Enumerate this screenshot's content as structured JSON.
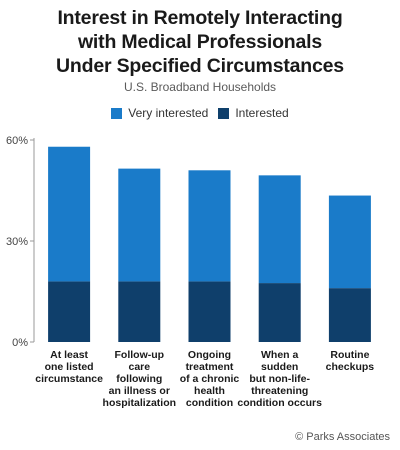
{
  "title_lines": [
    "Interest in Remotely Interacting",
    "with Medical Professionals",
    "Under Specified Circumstances"
  ],
  "subtitle": "U.S. Broadband Households",
  "credit": "© Parks Associates",
  "colors": {
    "very_interested": "#1a7bc9",
    "interested": "#0f3f6b",
    "axis": "#999999",
    "text": "#1a1a1a"
  },
  "chart_data": {
    "type": "bar",
    "stacked": true,
    "title": "Interest in Remotely Interacting with Medical Professionals Under Specified Circumstances",
    "subtitle": "U.S. Broadband Households",
    "legend_position": "top-center",
    "grid": false,
    "ylim": [
      0,
      60
    ],
    "yticks": [
      {
        "value": 0,
        "label": "0%"
      },
      {
        "value": 30,
        "label": "30%"
      },
      {
        "value": 60,
        "label": "60%"
      }
    ],
    "categories": [
      [
        "At least",
        "one listed",
        "circumstance"
      ],
      [
        "Follow-up",
        "care",
        "following",
        "an illness or",
        "hospitalization"
      ],
      [
        "Ongoing",
        "treatment",
        "of a chronic",
        "health",
        "condition"
      ],
      [
        "When a",
        "sudden",
        "but non-life-",
        "threatening",
        "condition occurs"
      ],
      [
        "Routine",
        "checkups"
      ]
    ],
    "series": [
      {
        "name": "Interested",
        "color": "#0f3f6b",
        "values": [
          18,
          18,
          18,
          17.5,
          16
        ]
      },
      {
        "name": "Very interested",
        "color": "#1a7bc9",
        "values": [
          40,
          33.5,
          33,
          32,
          27.5
        ]
      }
    ]
  }
}
